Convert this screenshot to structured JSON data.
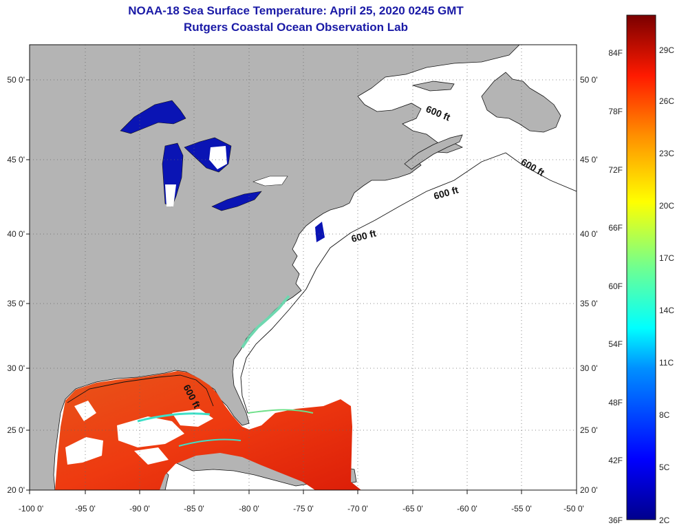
{
  "title": "NOAA-18 Sea Surface Temperature:  April 25, 2020 0245 GMT",
  "subtitle": "Rutgers Coastal Ocean Observation Lab",
  "lat_labels": [
    "50 0'",
    "45 0'",
    "40 0'",
    "35 0'",
    "30 0'",
    "25 0'",
    "20 0'"
  ],
  "lon_labels": [
    "-100 0'",
    "-95 0'",
    "-90 0'",
    "-85 0'",
    "-80 0'",
    "-75 0'",
    "-70 0'",
    "-65 0'",
    "-60 0'",
    "-55 0'",
    "-50 0'"
  ],
  "contour_label": "600 ft",
  "colorbar": {
    "f_labels": [
      "84F",
      "78F",
      "72F",
      "66F",
      "60F",
      "54F",
      "48F",
      "42F",
      "36F"
    ],
    "c_labels": [
      "29C",
      "26C",
      "23C",
      "20C",
      "17C",
      "14C",
      "11C",
      "8C",
      "5C",
      "2C"
    ]
  },
  "colors": {
    "land": "#b4b4b4",
    "lakes": "#0a14b4",
    "no_data": "#ffffff",
    "title": "#1a1aa6",
    "sst_warm": "#ee3a10",
    "sst_hot": "#e8230a"
  }
}
